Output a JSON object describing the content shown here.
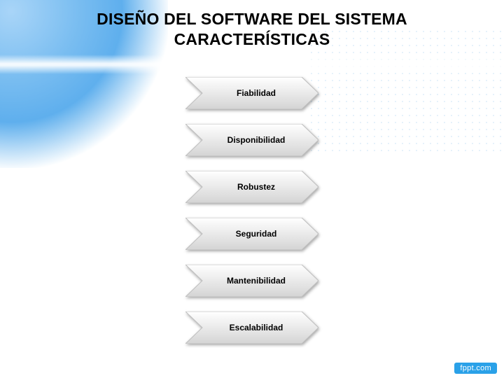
{
  "slide": {
    "title_line1": "DISEÑO DEL SOFTWARE DEL SISTEMA",
    "title_line2": "CARACTERÍSTICAS",
    "title_fontsize": 23,
    "title_color": "#000000",
    "background_color": "#ffffff"
  },
  "decor": {
    "corner_gradient_colors": [
      "#9fd0f7",
      "#6bb6ef",
      "#4da6eb"
    ],
    "dot_color": "#b9d9f2",
    "dot_spacing": 10
  },
  "chevron": {
    "width": 190,
    "height": 46,
    "notch": 24,
    "gap": 21,
    "fill_top": "#ffffff",
    "fill_bottom": "#d4d4d4",
    "stroke": "#bfbfbf",
    "label_fontsize": 12,
    "label_color": "#000000"
  },
  "items": [
    {
      "label": "Fiabilidad"
    },
    {
      "label": "Disponibilidad"
    },
    {
      "label": "Robustez"
    },
    {
      "label": "Seguridad"
    },
    {
      "label": "Mantenibilidad"
    },
    {
      "label": "Escalabilidad"
    }
  ],
  "footer": {
    "brand": "fppt.com",
    "bg": "#2aa1e8",
    "color": "#ffffff"
  }
}
